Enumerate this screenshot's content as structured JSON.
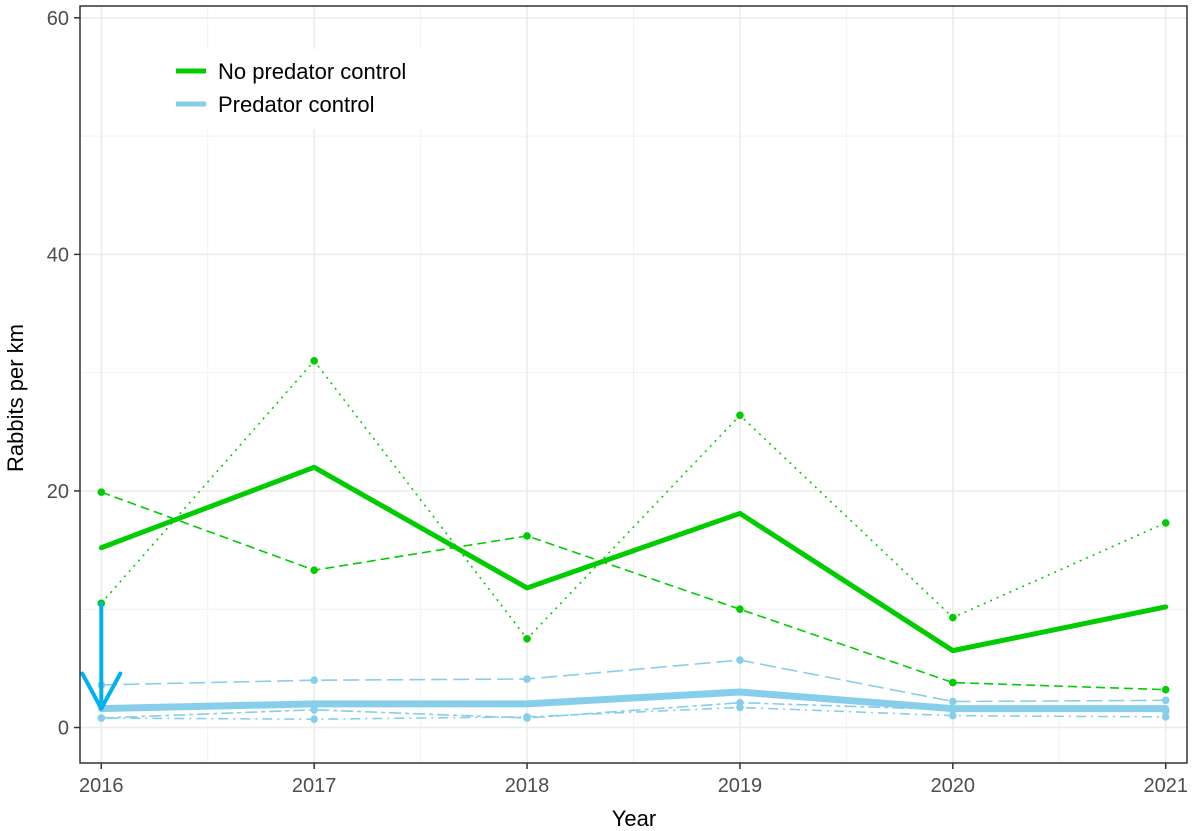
{
  "chart_data": {
    "type": "line",
    "xlabel": "Year",
    "ylabel": "Rabbits per km",
    "x": [
      "2016",
      "2017",
      "2018",
      "2019",
      "2020",
      "2021"
    ],
    "xlim": [
      2015.9,
      2021.1
    ],
    "ylim": [
      -3,
      61
    ],
    "yticks": [
      0,
      20,
      40,
      60
    ],
    "grid": true,
    "legend": {
      "position": "top-left",
      "entries": [
        {
          "label": "No predator control",
          "color": "#00cc00"
        },
        {
          "label": "Predator control",
          "color": "#87ceeb"
        }
      ]
    },
    "series": [
      {
        "name": "No predator control",
        "group": "No predator control",
        "color": "#00cc00",
        "role": "mean",
        "values": [
          15.2,
          22.0,
          11.8,
          18.1,
          6.5,
          10.2
        ]
      },
      {
        "group": "No predator control",
        "color": "#00cc00",
        "role": "site",
        "dash": "dashed",
        "values": [
          19.9,
          13.3,
          16.2,
          10.0,
          3.8,
          3.2
        ]
      },
      {
        "group": "No predator control",
        "color": "#00cc00",
        "role": "site",
        "dash": "dotted",
        "values": [
          10.5,
          31.0,
          7.5,
          26.4,
          9.3,
          17.3
        ]
      },
      {
        "name": "Predator control",
        "group": "Predator control",
        "color": "#87ceeb",
        "role": "mean",
        "values": [
          1.6,
          2.0,
          2.0,
          3.0,
          1.6,
          1.6
        ]
      },
      {
        "group": "Predator control",
        "color": "#87ceeb",
        "role": "site",
        "dash": "longdash",
        "values": [
          3.6,
          4.0,
          4.1,
          5.7,
          2.2,
          2.3
        ]
      },
      {
        "group": "Predator control",
        "color": "#87ceeb",
        "role": "site",
        "dash": "dotdash",
        "values": [
          0.8,
          0.7,
          0.9,
          1.7,
          1.0,
          0.9
        ]
      },
      {
        "group": "Predator control",
        "color": "#87ceeb",
        "role": "site",
        "dash": "twodash",
        "values": [
          0.8,
          1.5,
          0.8,
          2.1,
          1.5,
          1.4
        ]
      }
    ],
    "annotations": [
      {
        "type": "arrow",
        "color": "#00b0f0",
        "x": "2016",
        "y_from": 10.5,
        "y_to": 1.6
      }
    ]
  }
}
